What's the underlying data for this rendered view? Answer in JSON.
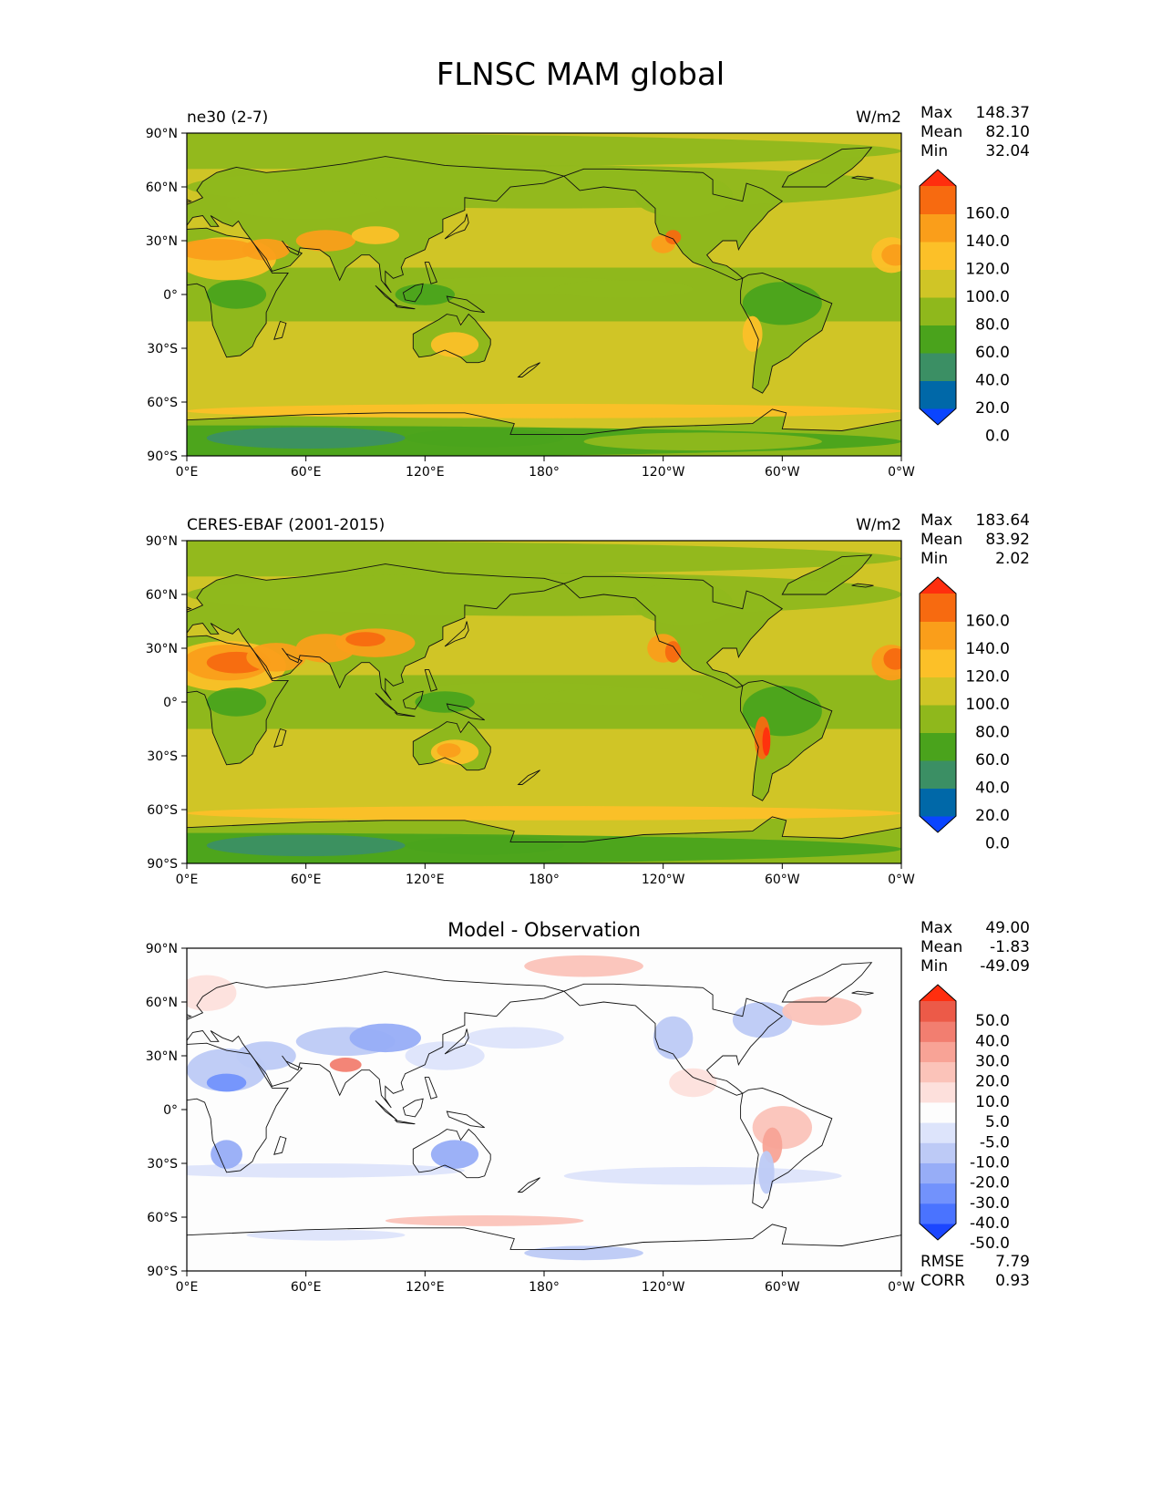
{
  "figure_title": "FLNSC MAM global",
  "colors": {
    "abs_levels": [
      "#0a45ff",
      "#0068a8",
      "#3b8f64",
      "#4aa31c",
      "#8fb81c",
      "#d0c526",
      "#fcc028",
      "#fa9e1a",
      "#f76a10",
      "#ff2e0e"
    ],
    "diff_levels": [
      "#1b46ff",
      "#4a73ff",
      "#7292fc",
      "#97adf7",
      "#bdcaf6",
      "#dde4fb",
      "#fdfdfd",
      "#fde0dc",
      "#fbc3b9",
      "#f8a396",
      "#f27e70",
      "#ec5a48",
      "#ff2e0e"
    ]
  },
  "chart_data": [
    {
      "type": "heatmap",
      "title": "ne30 (2-7)",
      "units": "W/m2",
      "stats": [
        {
          "label": "Max",
          "value": "148.37"
        },
        {
          "label": "Mean",
          "value": "82.10"
        },
        {
          "label": "Min",
          "value": "32.04"
        }
      ],
      "x_ticks": [
        "0°E",
        "60°E",
        "120°E",
        "180°",
        "120°W",
        "60°W",
        "0°W"
      ],
      "y_ticks": [
        "90°N",
        "60°N",
        "30°N",
        "0°",
        "30°S",
        "60°S",
        "90°S"
      ],
      "xlim": [
        0,
        360
      ],
      "ylim": [
        -90,
        90
      ],
      "colorbar": {
        "levels": [
          0,
          20,
          40,
          60,
          80,
          100,
          120,
          140,
          160
        ],
        "labels": [
          "160.0",
          "140.0",
          "120.0",
          "100.0",
          "80.0",
          "60.0",
          "40.0",
          "20.0",
          "0.0"
        ],
        "extend": "both"
      }
    },
    {
      "type": "heatmap",
      "title": "CERES-EBAF (2001-2015)",
      "units": "W/m2",
      "stats": [
        {
          "label": "Max",
          "value": "183.64"
        },
        {
          "label": "Mean",
          "value": "83.92"
        },
        {
          "label": "Min",
          "value": "2.02"
        }
      ],
      "x_ticks": [
        "0°E",
        "60°E",
        "120°E",
        "180°",
        "120°W",
        "60°W",
        "0°W"
      ],
      "y_ticks": [
        "90°N",
        "60°N",
        "30°N",
        "0°",
        "30°S",
        "60°S",
        "90°S"
      ],
      "xlim": [
        0,
        360
      ],
      "ylim": [
        -90,
        90
      ],
      "colorbar": {
        "levels": [
          0,
          20,
          40,
          60,
          80,
          100,
          120,
          140,
          160
        ],
        "labels": [
          "160.0",
          "140.0",
          "120.0",
          "100.0",
          "80.0",
          "60.0",
          "40.0",
          "20.0",
          "0.0"
        ],
        "extend": "both"
      }
    },
    {
      "type": "heatmap",
      "title": "Model - Observation",
      "stats": [
        {
          "label": "Max",
          "value": "49.00"
        },
        {
          "label": "Mean",
          "value": "-1.83"
        },
        {
          "label": "Min",
          "value": "-49.09"
        }
      ],
      "metrics": [
        {
          "label": "RMSE",
          "value": "7.79"
        },
        {
          "label": "CORR",
          "value": "0.93"
        }
      ],
      "x_ticks": [
        "0°E",
        "60°E",
        "120°E",
        "180°",
        "120°W",
        "60°W",
        "0°W"
      ],
      "y_ticks": [
        "90°N",
        "60°N",
        "30°N",
        "0°",
        "30°S",
        "60°S",
        "90°S"
      ],
      "xlim": [
        0,
        360
      ],
      "ylim": [
        -90,
        90
      ],
      "colorbar": {
        "levels": [
          -50,
          -40,
          -30,
          -20,
          -10,
          -5,
          5,
          10,
          20,
          30,
          40,
          50
        ],
        "labels": [
          "50.0",
          "40.0",
          "30.0",
          "20.0",
          "10.0",
          "5.0",
          "-5.0",
          "-10.0",
          "-20.0",
          "-30.0",
          "-40.0",
          "-50.0"
        ],
        "extend": "both"
      }
    }
  ]
}
